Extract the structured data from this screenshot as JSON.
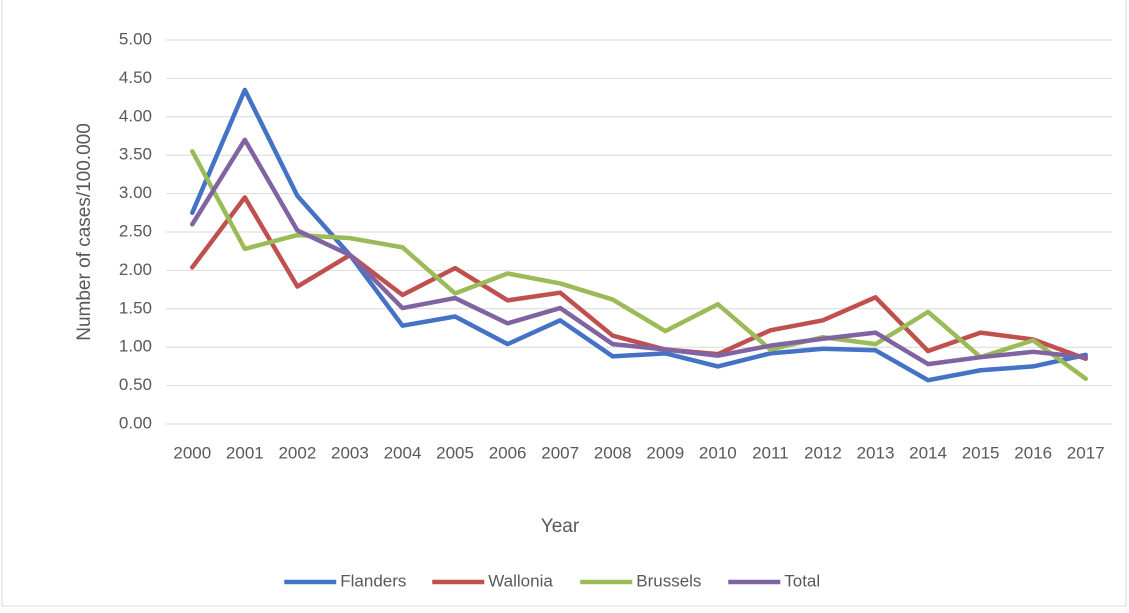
{
  "chart_data": {
    "type": "line",
    "xlabel": "Year",
    "ylabel": "Number of cases/100.000",
    "categories": [
      "2000",
      "2001",
      "2002",
      "2003",
      "2004",
      "2005",
      "2006",
      "2007",
      "2008",
      "2009",
      "2010",
      "2011",
      "2012",
      "2013",
      "2014",
      "2015",
      "2016",
      "2017"
    ],
    "series": [
      {
        "name": "Flanders",
        "color": "#4472c4",
        "values": [
          2.75,
          4.35,
          2.97,
          2.2,
          1.28,
          1.4,
          1.04,
          1.35,
          0.88,
          0.92,
          0.75,
          0.92,
          0.98,
          0.96,
          0.57,
          0.7,
          0.75,
          0.9
        ]
      },
      {
        "name": "Wallonia",
        "color": "#c0504d",
        "values": [
          2.04,
          2.95,
          1.79,
          2.2,
          1.68,
          2.03,
          1.61,
          1.71,
          1.15,
          0.97,
          0.91,
          1.22,
          1.35,
          1.65,
          0.95,
          1.19,
          1.1,
          0.85
        ]
      },
      {
        "name": "Brussels",
        "color": "#9bbb59",
        "values": [
          3.55,
          2.28,
          2.46,
          2.42,
          2.3,
          1.7,
          1.96,
          1.83,
          1.62,
          1.21,
          1.56,
          0.97,
          1.13,
          1.04,
          1.46,
          0.87,
          1.09,
          0.59
        ]
      },
      {
        "name": "Total",
        "color": "#8064a2",
        "values": [
          2.6,
          3.7,
          2.52,
          2.2,
          1.51,
          1.64,
          1.31,
          1.51,
          1.04,
          0.97,
          0.89,
          1.02,
          1.11,
          1.19,
          0.78,
          0.87,
          0.94,
          0.87
        ]
      }
    ],
    "ylim": [
      0,
      5
    ],
    "yticks": [
      {
        "value": 0,
        "label": "0.00"
      },
      {
        "value": 0.5,
        "label": "0.50"
      },
      {
        "value": 1,
        "label": "1.00"
      },
      {
        "value": 1.5,
        "label": "1.50"
      },
      {
        "value": 2,
        "label": "2.00"
      },
      {
        "value": 2.5,
        "label": "2.50"
      },
      {
        "value": 3,
        "label": "3.00"
      },
      {
        "value": 3.5,
        "label": "3.50"
      },
      {
        "value": 4,
        "label": "4.00"
      },
      {
        "value": 4.5,
        "label": "4.50"
      },
      {
        "value": 5,
        "label": "5.00"
      }
    ],
    "grid": true,
    "legend": "bottom"
  }
}
